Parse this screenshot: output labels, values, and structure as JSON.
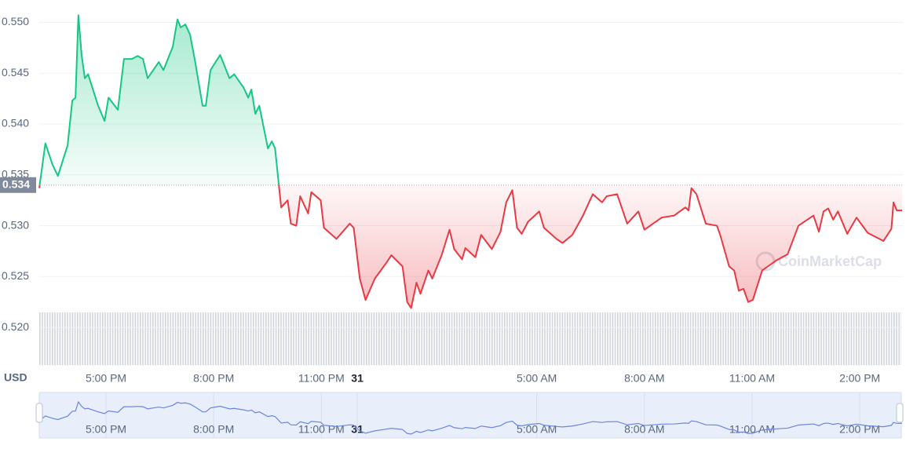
{
  "chart_data": {
    "type": "line",
    "currency": "USD",
    "watermark": "CoinMarketCap",
    "x": [
      15.14,
      15.31,
      15.51,
      15.66,
      15.93,
      16.06,
      16.15,
      16.23,
      16.32,
      16.41,
      16.5,
      16.78,
      16.96,
      17.07,
      17.33,
      17.5,
      17.72,
      17.88,
      18.03,
      18.16,
      18.47,
      18.6,
      18.86,
      18.99,
      19.08,
      19.21,
      19.34,
      19.47,
      19.69,
      19.78,
      19.91,
      20.18,
      20.44,
      20.57,
      20.83,
      20.96,
      21.05,
      21.16,
      21.27,
      21.51,
      21.62,
      21.71,
      21.88,
      22.06,
      22.15,
      22.3,
      22.41,
      22.63,
      22.72,
      22.98,
      23.07,
      23.42,
      23.79,
      23.9,
      24.07,
      24.23,
      24.49,
      24.82,
      24.95,
      25.26,
      25.39,
      25.5,
      25.65,
      25.76,
      25.98,
      26.09,
      26.35,
      26.57,
      26.7,
      26.92,
      27.01,
      27.29,
      27.45,
      27.75,
      27.99,
      28.15,
      28.32,
      28.45,
      28.58,
      28.76,
      29.07,
      29.2,
      29.55,
      29.72,
      29.99,
      30.29,
      30.56,
      30.82,
      30.95,
      31.24,
      31.52,
      31.83,
      32.0,
      32.48,
      32.83,
      33.14,
      33.23,
      33.31,
      33.45,
      33.71,
      34.02,
      34.11,
      34.36,
      34.5,
      34.63,
      34.76,
      34.89,
      35.02,
      35.28,
      35.68,
      35.99,
      36.29,
      36.71,
      36.86,
      36.99,
      37.12,
      37.26,
      37.39,
      37.65,
      37.91,
      38.22,
      38.66,
      38.88,
      38.94,
      39.03,
      39.18
    ],
    "values": [
      0.5337,
      0.5381,
      0.536,
      0.5349,
      0.5379,
      0.5423,
      0.5426,
      0.5507,
      0.5468,
      0.5445,
      0.5449,
      0.5418,
      0.5403,
      0.5426,
      0.5414,
      0.5464,
      0.5464,
      0.5467,
      0.5464,
      0.5445,
      0.5461,
      0.5453,
      0.5476,
      0.5503,
      0.5495,
      0.5498,
      0.5488,
      0.5464,
      0.5418,
      0.5418,
      0.5453,
      0.5468,
      0.5445,
      0.5449,
      0.5436,
      0.5426,
      0.5434,
      0.541,
      0.5418,
      0.5376,
      0.5383,
      0.5376,
      0.5318,
      0.5325,
      0.5302,
      0.53,
      0.5329,
      0.5312,
      0.5333,
      0.5325,
      0.5298,
      0.5287,
      0.5302,
      0.5298,
      0.5248,
      0.5227,
      0.5248,
      0.5264,
      0.5271,
      0.526,
      0.5225,
      0.5219,
      0.5244,
      0.5233,
      0.5256,
      0.5248,
      0.5271,
      0.5296,
      0.5277,
      0.5267,
      0.5278,
      0.5269,
      0.5291,
      0.5277,
      0.5294,
      0.5323,
      0.5335,
      0.5298,
      0.5292,
      0.5304,
      0.5314,
      0.5298,
      0.5287,
      0.5283,
      0.5291,
      0.531,
      0.5331,
      0.5323,
      0.5329,
      0.5331,
      0.5302,
      0.5314,
      0.5296,
      0.5308,
      0.531,
      0.5318,
      0.5315,
      0.5337,
      0.5331,
      0.5302,
      0.53,
      0.5291,
      0.526,
      0.5256,
      0.5236,
      0.5238,
      0.5225,
      0.5227,
      0.5256,
      0.5266,
      0.5272,
      0.53,
      0.531,
      0.5294,
      0.5314,
      0.5317,
      0.5306,
      0.5314,
      0.5292,
      0.5308,
      0.5293,
      0.5285,
      0.5297,
      0.5323,
      0.5315,
      0.5315
    ],
    "reference": 0.534,
    "up_color": "#16c784",
    "down_color": "#ea3943",
    "navigator_color": "#6b86e0",
    "xlim": [
      15.14,
      39.2
    ],
    "xticks": [
      {
        "value": 17,
        "label": "5:00 PM"
      },
      {
        "value": 20,
        "label": "8:00 PM"
      },
      {
        "value": 23,
        "label": "11:00 PM"
      },
      {
        "value": 24,
        "label": "31"
      },
      {
        "value": 29,
        "label": "5:00 AM"
      },
      {
        "value": 32,
        "label": "8:00 AM"
      },
      {
        "value": 35,
        "label": "11:00 AM"
      },
      {
        "value": 38,
        "label": "2:00 PM"
      }
    ],
    "ylim": [
      0.5163,
      0.5522
    ],
    "yticks": [
      {
        "value": 0.52,
        "label": "0.520"
      },
      0.525,
      {
        "value": 0.53,
        "label": "0.530"
      },
      0.535,
      {
        "value": 0.54,
        "label": "0.540"
      },
      0.545,
      {
        "value": 0.55,
        "label": "0.550"
      }
    ],
    "grid": true
  }
}
